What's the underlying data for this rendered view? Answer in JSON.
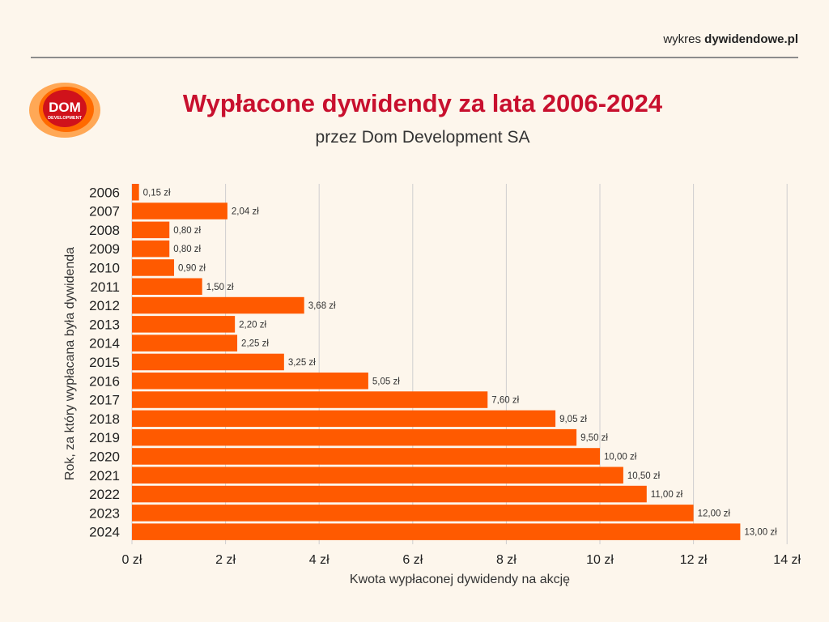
{
  "header": {
    "brand_prefix": "wykres ",
    "brand_name": "dywidendowe.pl"
  },
  "logo": {
    "line1": "DOM",
    "line2": "DEVELOPMENT"
  },
  "colors": {
    "bar": "#ff5a00",
    "title": "#c8102e",
    "grid": "#cfcfcf",
    "background": "#fdf6ec"
  },
  "chart_data": {
    "type": "bar",
    "orientation": "horizontal",
    "title": "Wypłacone dywidendy za lata 2006-2024",
    "subtitle": "przez Dom Development SA",
    "xlabel": "Kwota wypłaconej dywidendy na akcję",
    "ylabel": "Rok, za który wypłacana była dywidenda",
    "xlim": [
      0,
      14
    ],
    "xticks": [
      "0 zł",
      "2 zł",
      "4 zł",
      "6 zł",
      "8 zł",
      "10 zł",
      "12 zł",
      "14 zł"
    ],
    "grid": "vertical",
    "categories": [
      "2006",
      "2007",
      "2008",
      "2009",
      "2010",
      "2011",
      "2012",
      "2013",
      "2014",
      "2015",
      "2016",
      "2017",
      "2018",
      "2019",
      "2020",
      "2021",
      "2022",
      "2023",
      "2024"
    ],
    "values": [
      0.15,
      2.04,
      0.8,
      0.8,
      0.9,
      1.5,
      3.68,
      2.2,
      2.25,
      3.25,
      5.05,
      7.6,
      9.05,
      9.5,
      10.0,
      10.5,
      11.0,
      12.0,
      13.0
    ],
    "value_labels": [
      "0,15 zł",
      "2,04 zł",
      "0,80 zł",
      "0,80 zł",
      "0,90 zł",
      "1,50 zł",
      "3,68 zł",
      "2,20 zł",
      "2,25 zł",
      "3,25 zł",
      "5,05 zł",
      "7,60 zł",
      "9,05 zł",
      "9,50 zł",
      "10,00 zł",
      "10,50 zł",
      "11,00 zł",
      "12,00 zł",
      "13,00 zł"
    ]
  }
}
